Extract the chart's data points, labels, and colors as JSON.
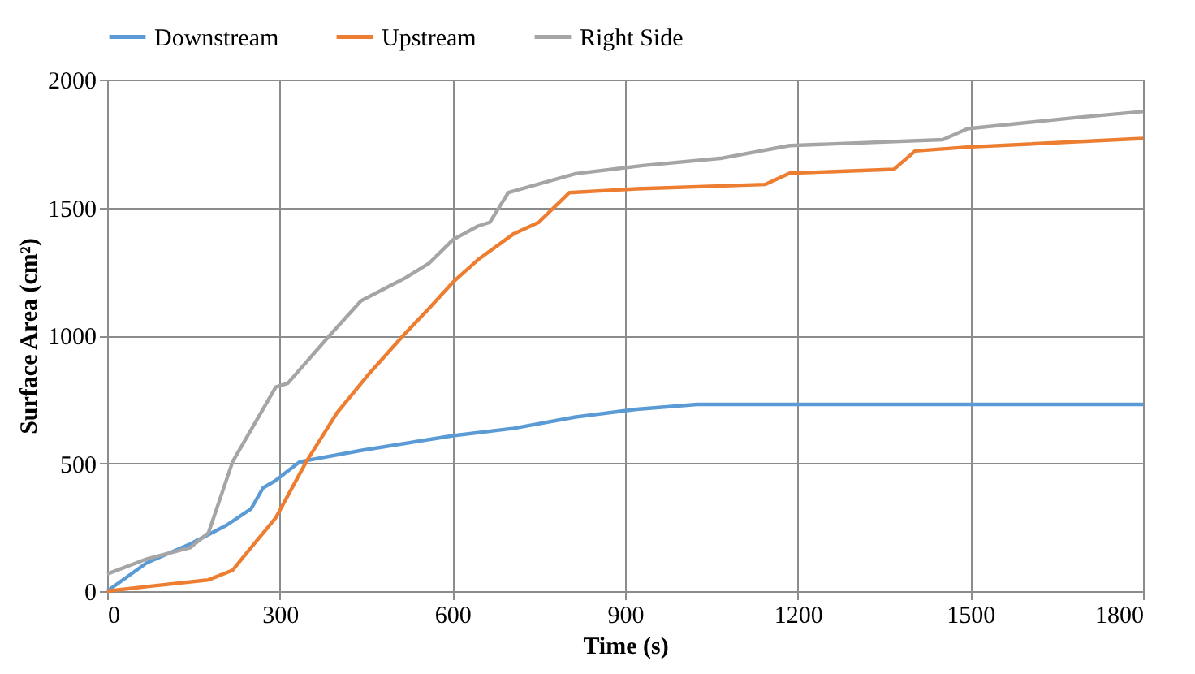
{
  "chart_data": {
    "type": "line",
    "xlabel": "Time (s)",
    "ylabel": "Surface Area (cm²)",
    "xlim": [
      0,
      1800
    ],
    "xticks": [
      0,
      300,
      600,
      900,
      1200,
      1500,
      1800
    ],
    "ylim": [
      0,
      2000
    ],
    "yticks": [
      0,
      500,
      1000,
      1500,
      2000
    ],
    "grid": true,
    "legend": "top",
    "marker": "none",
    "line_style": "solid",
    "series": [
      {
        "name": "Downstream",
        "color": "#5b9bd5",
        "x": [
          0,
          69,
          144,
          207,
          250,
          271,
          293,
          335,
          441,
          601,
          707,
          814,
          920,
          1025,
          1200,
          1500,
          1800
        ],
        "values": [
          0,
          111,
          184,
          257,
          322,
          404,
          433,
          506,
          550,
          608,
          637,
          681,
          711,
          730,
          730,
          730,
          730
        ]
      },
      {
        "name": "Upstream",
        "color": "#ed7d31",
        "x": [
          0,
          69,
          176,
          218,
          250,
          293,
          346,
          399,
          452,
          516,
          559,
          601,
          644,
          707,
          750,
          803,
          920,
          1143,
          1186,
          1367,
          1404,
          1495,
          1800
        ],
        "values": [
          0,
          18,
          44,
          82,
          170,
          287,
          506,
          696,
          842,
          1003,
          1105,
          1208,
          1295,
          1398,
          1442,
          1558,
          1573,
          1590,
          1634,
          1649,
          1721,
          1736,
          1770
        ]
      },
      {
        "name": "Right Side",
        "color": "#a5a5a5",
        "x": [
          0,
          69,
          144,
          176,
          218,
          293,
          314,
          388,
          441,
          516,
          559,
          601,
          644,
          665,
          697,
          814,
          931,
          1069,
          1186,
          1452,
          1495,
          1686,
          1800
        ],
        "values": [
          67,
          126,
          170,
          228,
          506,
          798,
          813,
          1003,
          1135,
          1222,
          1281,
          1374,
          1427,
          1442,
          1558,
          1632,
          1664,
          1693,
          1742,
          1765,
          1808,
          1852,
          1875
        ]
      }
    ]
  }
}
